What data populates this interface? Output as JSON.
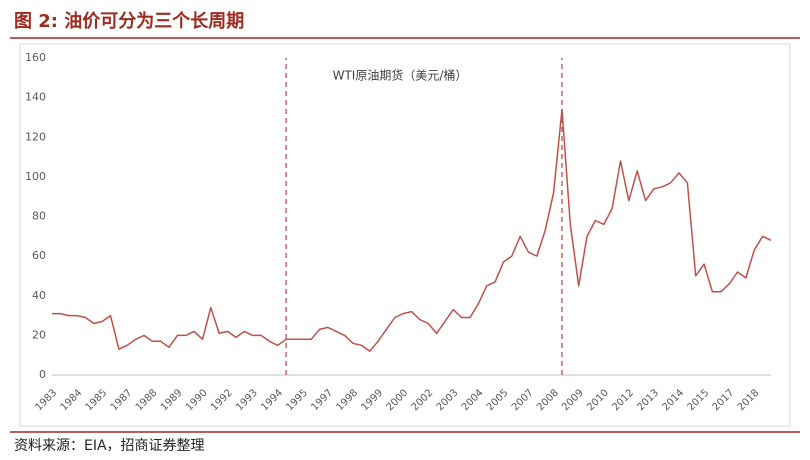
{
  "header": {
    "title": "图 2:  油价可分为三个长周期"
  },
  "footer": {
    "source": "资料来源：EIA，招商证券整理"
  },
  "chart_data": {
    "type": "line",
    "categories": [
      "1983",
      null,
      null,
      "1984",
      null,
      null,
      "1985",
      null,
      null,
      "1987",
      null,
      null,
      "1988",
      null,
      null,
      "1989",
      null,
      null,
      "1990",
      null,
      null,
      "1992",
      null,
      null,
      "1993",
      null,
      null,
      "1994",
      null,
      null,
      "1995",
      null,
      null,
      "1997",
      null,
      null,
      "1998",
      null,
      null,
      "1999",
      null,
      null,
      "2000",
      null,
      null,
      "2002",
      null,
      null,
      "2003",
      null,
      null,
      "2004",
      null,
      null,
      "2005",
      null,
      null,
      "2007",
      null,
      null,
      "2008",
      null,
      null,
      "2009",
      null,
      null,
      "2010",
      null,
      null,
      "2012",
      null,
      null,
      "2013",
      null,
      null,
      "2014",
      null,
      null,
      "2015",
      null,
      null,
      "2017",
      null,
      null,
      "2018",
      null,
      null
    ],
    "series": [
      {
        "name": "WTI原油期货（美元/桶）",
        "color": "#c0504d",
        "values": [
          31,
          31,
          30,
          30,
          29,
          26,
          27,
          30,
          13,
          15,
          18,
          20,
          17,
          17,
          14,
          20,
          20,
          22,
          18,
          34,
          21,
          22,
          19,
          22,
          20,
          20,
          17,
          15,
          18,
          18,
          18,
          18,
          23,
          24,
          22,
          20,
          16,
          15,
          12,
          17,
          23,
          29,
          31,
          32,
          28,
          26,
          21,
          27,
          33,
          29,
          29,
          36,
          45,
          47,
          57,
          60,
          70,
          62,
          60,
          73,
          92,
          134,
          76,
          45,
          70,
          78,
          76,
          84,
          108,
          88,
          103,
          88,
          94,
          95,
          97,
          102,
          97,
          50,
          56,
          42,
          42,
          46,
          52,
          49,
          63,
          70,
          68
        ]
      }
    ],
    "ylim": [
      0,
      160
    ],
    "yticks": [
      0,
      20,
      40,
      60,
      80,
      100,
      120,
      140,
      160
    ],
    "grid": false,
    "vlines": [
      28,
      61
    ]
  }
}
